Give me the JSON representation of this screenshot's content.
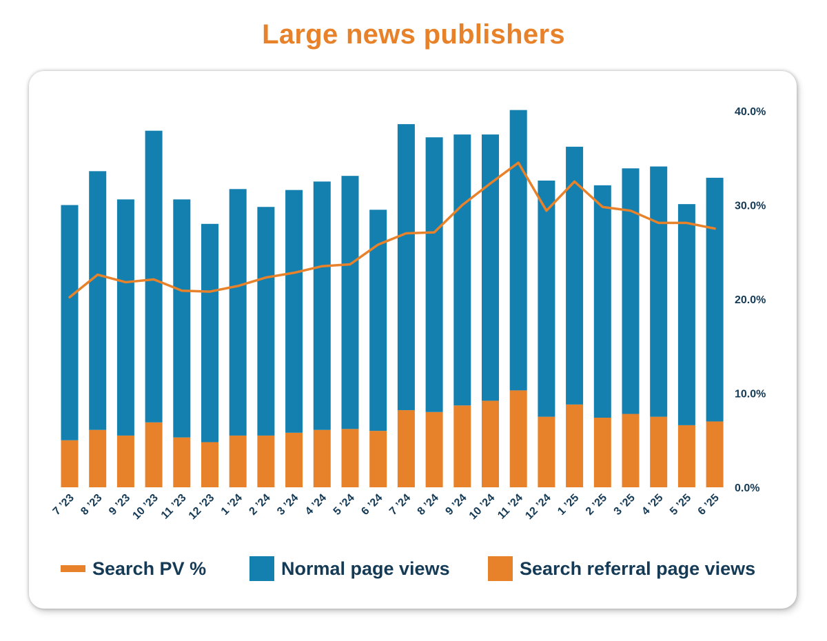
{
  "title": "Large news publishers",
  "colors": {
    "accent": "#e8822a",
    "normal": "#1380b0",
    "search": "#e8822a",
    "text": "#153a55"
  },
  "legend": {
    "line_label": "Search PV %",
    "normal_label": "Normal page views",
    "search_label": "Search referral page views"
  },
  "chart_data": {
    "type": "bar",
    "stacked": true,
    "categories": [
      "7 ’23",
      "8 ’23",
      "9 ’23",
      "10 ’23",
      "11 ’23",
      "12 ’23",
      "1 ’24",
      "2 ’24",
      "3 ’24",
      "4 ’24",
      "5 ’24",
      "6 ’24",
      "7 ’24",
      "8 ’24",
      "9 ’24",
      "10 ’24",
      "11 ’24",
      "12 ’24",
      "1 ’25",
      "2 ’25",
      "3 ’25",
      "4 ’25",
      "5 ’25",
      "6 ’25"
    ],
    "series": [
      {
        "name": "Search referral page views",
        "values": [
          5.0,
          6.1,
          5.5,
          6.9,
          5.3,
          4.8,
          5.5,
          5.5,
          5.8,
          6.1,
          6.2,
          6.0,
          8.2,
          8.0,
          8.7,
          9.2,
          10.3,
          7.5,
          8.8,
          7.4,
          7.8,
          7.5,
          6.6,
          7.0
        ]
      },
      {
        "name": "Normal page views",
        "values": [
          25.0,
          27.5,
          25.1,
          31.0,
          25.3,
          23.2,
          26.2,
          24.3,
          25.8,
          26.4,
          26.9,
          23.5,
          30.4,
          29.2,
          28.8,
          28.3,
          29.8,
          25.1,
          27.4,
          24.7,
          26.1,
          26.6,
          23.5,
          25.9
        ]
      },
      {
        "name": "Search PV %",
        "type": "line",
        "values": [
          20.2,
          22.6,
          21.8,
          22.1,
          20.9,
          20.8,
          21.4,
          22.3,
          22.8,
          23.5,
          23.7,
          25.8,
          27.0,
          27.1,
          30.0,
          32.3,
          34.5,
          29.4,
          32.5,
          29.8,
          29.4,
          28.1,
          28.1,
          27.5
        ]
      }
    ],
    "y_axis": {
      "side": "right",
      "ticks": [
        "0.0%",
        "10.0%",
        "20.0%",
        "30.0%",
        "40.0%"
      ],
      "ylim": [
        0,
        40
      ]
    },
    "grid": false,
    "legend_position": "bottom"
  }
}
